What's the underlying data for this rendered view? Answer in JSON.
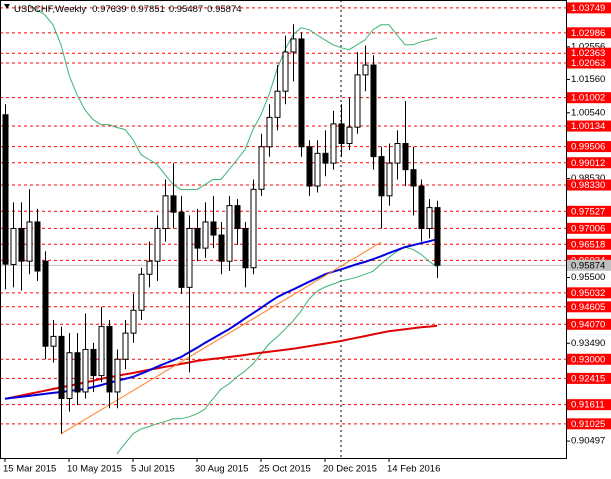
{
  "chart_data": {
    "type": "candlestick",
    "title": "USDCHF,Weekly",
    "categories": [
      "15 Mar 2015",
      null,
      null,
      null,
      null,
      null,
      null,
      null,
      "10 May 2015",
      null,
      null,
      null,
      null,
      null,
      null,
      null,
      "5 Jul 2015",
      null,
      null,
      null,
      null,
      null,
      null,
      null,
      "30 Aug 2015",
      null,
      null,
      null,
      null,
      null,
      null,
      null,
      "25 Oct 2015",
      null,
      null,
      null,
      null,
      null,
      null,
      null,
      "20 Dec 2015",
      null,
      null,
      null,
      null,
      null,
      null,
      null,
      "14 Feb 2016",
      null,
      null,
      null,
      null,
      null,
      null
    ],
    "open": [
      1.0048,
      0.959,
      0.97,
      0.96,
      0.972,
      0.96,
      0.934,
      0.937,
      0.918,
      0.932,
      0.92,
      0.933,
      0.925,
      0.94,
      0.92,
      0.93,
      0.938,
      0.945,
      0.956,
      0.96,
      0.97,
      0.98,
      0.975,
      0.952,
      0.97,
      0.964,
      0.972,
      0.968,
      0.96,
      0.977,
      0.97,
      0.958,
      0.982,
      0.995,
      1.004,
      1.012,
      1.024,
      1.028,
      0.995,
      0.983,
      0.993,
      0.99,
      1.002,
      0.996,
      1.001,
      1.017,
      1.02,
      0.992,
      0.98,
      0.99,
      0.996,
      0.988,
      0.983,
      0.97,
      0.97639
    ],
    "high": [
      1.008,
      0.978,
      0.978,
      0.982,
      0.976,
      0.963,
      0.942,
      0.94,
      0.938,
      0.938,
      0.944,
      0.935,
      0.946,
      0.942,
      0.933,
      0.942,
      0.95,
      0.958,
      0.966,
      0.974,
      0.985,
      0.99,
      0.98,
      0.974,
      0.976,
      0.978,
      0.98,
      0.972,
      0.98,
      0.979,
      0.972,
      0.985,
      0.999,
      1.008,
      1.02,
      1.029,
      1.0325,
      1.03,
      0.997,
      0.997,
      1.0,
      1.006,
      1.008,
      1.01,
      1.024,
      1.026,
      1.023,
      0.995,
      0.996,
      1.0,
      1.009,
      0.995,
      0.985,
      0.979,
      0.97851
    ],
    "low": [
      0.9514,
      0.952,
      0.951,
      0.956,
      0.954,
      0.93,
      0.929,
      0.9072,
      0.914,
      0.916,
      0.918,
      0.92,
      0.923,
      0.915,
      0.915,
      0.927,
      0.935,
      0.942,
      0.952,
      0.954,
      0.966,
      0.97,
      0.95,
      0.926,
      0.96,
      0.961,
      0.964,
      0.956,
      0.957,
      0.965,
      0.952,
      0.956,
      0.98,
      0.992,
      1.0,
      1.008,
      1.015,
      0.992,
      0.98,
      0.981,
      0.986,
      0.988,
      0.992,
      0.994,
      0.999,
      1.012,
      0.988,
      0.97,
      0.977,
      0.985,
      0.983,
      0.974,
      0.966,
      0.967,
      0.95487
    ],
    "close": [
      0.9591,
      0.97,
      0.96,
      0.972,
      0.957,
      0.934,
      0.937,
      0.918,
      0.932,
      0.92,
      0.933,
      0.925,
      0.94,
      0.92,
      0.93,
      0.938,
      0.945,
      0.956,
      0.96,
      0.97,
      0.98,
      0.975,
      0.952,
      0.97,
      0.964,
      0.972,
      0.968,
      0.96,
      0.977,
      0.97,
      0.958,
      0.982,
      0.995,
      1.004,
      1.012,
      1.024,
      1.028,
      0.995,
      0.983,
      0.993,
      0.99,
      1.002,
      0.996,
      1.001,
      1.017,
      1.02,
      0.992,
      0.98,
      0.99,
      0.996,
      0.988,
      0.983,
      0.97,
      0.9764,
      0.95874
    ],
    "up_color": "#ffffff",
    "down_color": "#000000",
    "series": [
      {
        "color": "#3cb371",
        "width": 1,
        "values": [
          null,
          null,
          null,
          1.0384,
          1.0369,
          1.0353,
          1.0323,
          1.0262,
          1.017,
          1.0109,
          1.0063,
          1.0033,
          1.0018,
          1.0018,
          1.0009,
          1.0003,
          0.9972,
          0.9926,
          0.9911,
          0.9896,
          0.9865,
          0.9835,
          0.9819,
          0.9819,
          0.9819,
          0.9835,
          0.985,
          0.985,
          0.988,
          0.9911,
          0.9941,
          1.0003,
          1.0048,
          1.0109,
          1.0186,
          1.0247,
          1.0292,
          1.0314,
          1.0308,
          1.0292,
          1.0277,
          1.0262,
          1.0253,
          1.0247,
          1.0262,
          1.0277,
          1.0308,
          1.0323,
          1.0323,
          1.0292,
          1.0262,
          1.0262,
          1.0271,
          1.0277,
          1.0283
        ]
      },
      {
        "color": "#3cb371",
        "width": 1,
        "values": [
          null,
          null,
          null,
          null,
          null,
          null,
          null,
          null,
          null,
          null,
          null,
          null,
          null,
          null,
          0.9011,
          0.9042,
          0.9072,
          0.9087,
          0.9094,
          0.9103,
          0.9109,
          0.9118,
          0.9118,
          0.9124,
          0.9133,
          0.9148,
          0.9179,
          0.9209,
          0.9225,
          0.9246,
          0.9264,
          0.9286,
          0.9316,
          0.9347,
          0.9368,
          0.9392,
          0.9417,
          0.9447,
          0.9484,
          0.9508,
          0.9521,
          0.953,
          0.9539,
          0.9545,
          0.9551,
          0.956,
          0.9569,
          0.9591,
          0.9612,
          0.963,
          0.9643,
          0.9636,
          0.9621,
          0.96,
          0.9582
        ]
      },
      {
        "color": "#e00000",
        "width": 2,
        "values": [
          0.9179,
          0.9184,
          0.9189,
          0.9194,
          0.9199,
          0.9204,
          0.9209,
          0.9214,
          0.9219,
          0.9224,
          0.9229,
          0.9234,
          0.924,
          0.9245,
          0.9249,
          0.9254,
          0.9258,
          0.9263,
          0.9268,
          0.9272,
          0.9277,
          0.9281,
          0.9286,
          0.929,
          0.9295,
          0.9298,
          0.9301,
          0.9304,
          0.9307,
          0.931,
          0.9313,
          0.9317,
          0.932,
          0.9323,
          0.9326,
          0.9329,
          0.9332,
          0.9336,
          0.934,
          0.9344,
          0.9348,
          0.9352,
          0.9356,
          0.9361,
          0.9366,
          0.9371,
          0.9376,
          0.9381,
          0.9386,
          0.9389,
          0.9392,
          0.9395,
          0.9398,
          0.94,
          0.9402
        ]
      },
      {
        "color": "#0000e0",
        "width": 2,
        "values": [
          0.9179,
          0.9182,
          0.9185,
          0.9188,
          0.9191,
          0.9194,
          0.9197,
          0.92,
          0.9203,
          0.9206,
          0.9209,
          0.9215,
          0.9221,
          0.9228,
          0.9234,
          0.924,
          0.9246,
          0.9256,
          0.9266,
          0.9277,
          0.9287,
          0.9297,
          0.9307,
          0.9321,
          0.9335,
          0.935,
          0.9364,
          0.9378,
          0.9392,
          0.9408,
          0.9425,
          0.9441,
          0.9457,
          0.9474,
          0.949,
          0.9502,
          0.9513,
          0.9525,
          0.9537,
          0.9548,
          0.956,
          0.9568,
          0.9575,
          0.9583,
          0.9591,
          0.9598,
          0.9606,
          0.9615,
          0.9625,
          0.9634,
          0.9643,
          0.9649,
          0.9655,
          0.9661,
          0.9667
        ]
      }
    ],
    "trendline": {
      "color": "#ff7f27",
      "x": [
        7,
        47
      ],
      "values": [
        0.9072,
        0.9658
      ]
    },
    "ylim": [
      0.8998,
      1.0399
    ],
    "yticks": [
      1.02556,
      {
        "value": 1.0156,
        "label": "1.01560"
      },
      {
        "value": 1.0054,
        "label": "1.00540"
      },
      {
        "value": 0.9853,
        "label": "0.98530"
      },
      {
        "value": 0.955,
        "label": "0.95500"
      },
      {
        "value": 0.9349,
        "label": "0.93490"
      },
      0.90497
    ],
    "levels_color": "#ff0000",
    "levels": [
      1.03749,
      1.02986,
      1.02363,
      1.02063,
      1.01002,
      1.00134,
      0.99506,
      0.99012,
      {
        "value": 0.9833,
        "label": "0.98330"
      },
      0.97527,
      0.97006,
      0.96518,
      0.96024,
      0.95032,
      0.94605,
      {
        "value": 0.9407,
        "label": "0.94070"
      },
      {
        "value": 0.93,
        "label": "0.93000"
      },
      0.92415,
      0.91611,
      0.91025
    ],
    "current_price": 0.95874
  }
}
